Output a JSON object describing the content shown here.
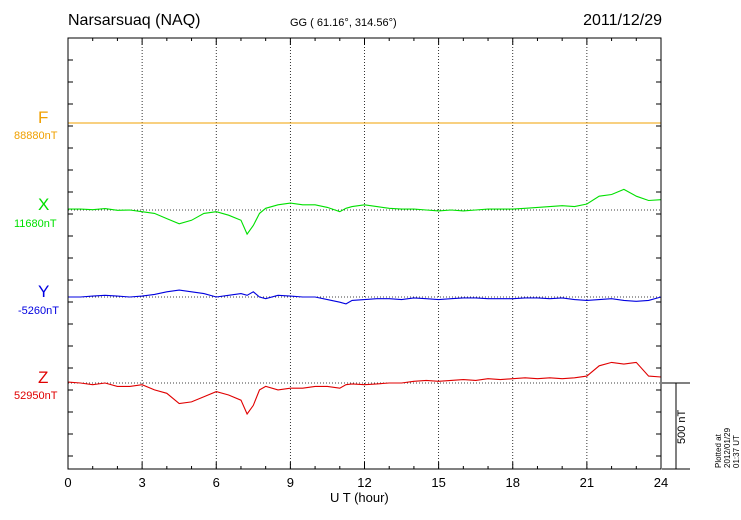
{
  "header": {
    "station": "Narsarsuaq (NAQ)",
    "coords": "GG ( 61.16°, 314.56°)",
    "date": "2011/12/29"
  },
  "components": [
    {
      "letter": "F",
      "base": "88880nT",
      "color": "#f0a000"
    },
    {
      "letter": "X",
      "base": "11680nT",
      "color": "#00e000"
    },
    {
      "letter": "Y",
      "base": "-5260nT",
      "color": "#0000e0"
    },
    {
      "letter": "Z",
      "base": "52950nT",
      "color": "#e00000"
    }
  ],
  "scale_label": "500 nT",
  "plotted_note": "Plotted at 2012/01/29 01:37 UT",
  "chart_data": {
    "type": "line",
    "title": "Narsarsuaq (NAQ)",
    "xlabel": "U T (hour)",
    "x_ticks": [
      0,
      3,
      6,
      9,
      12,
      15,
      18,
      21,
      24
    ],
    "xlim": [
      0,
      24
    ],
    "grid": true,
    "scale_bar_nT": 500,
    "x": [
      0,
      0.5,
      1,
      1.5,
      2,
      2.5,
      3,
      3.5,
      4,
      4.5,
      5,
      5.5,
      6,
      6.5,
      7,
      7.25,
      7.5,
      7.75,
      8,
      8.5,
      9,
      9.5,
      10,
      10.5,
      11,
      11.25,
      11.5,
      12,
      12.5,
      13,
      13.5,
      14,
      14.5,
      15,
      15.5,
      16,
      16.5,
      17,
      17.5,
      18,
      18.5,
      19,
      19.5,
      20,
      20.5,
      21,
      21.5,
      22,
      22.5,
      23,
      23.5,
      24
    ],
    "series": [
      {
        "name": "F",
        "baseline": 88880,
        "values": [
          0,
          0,
          0,
          0,
          0,
          0,
          0,
          0,
          0,
          0,
          0,
          0,
          0,
          0,
          0,
          0,
          0,
          0,
          0,
          0,
          0,
          0,
          0,
          0,
          0,
          0,
          0,
          0,
          0,
          0,
          0,
          0,
          0,
          0,
          0,
          0,
          0,
          0,
          0,
          0,
          0,
          0,
          0,
          0,
          0,
          0,
          0,
          0,
          0,
          0,
          0,
          0
        ]
      },
      {
        "name": "X",
        "baseline": 11680,
        "values": [
          5,
          5,
          2,
          8,
          -2,
          0,
          -10,
          -20,
          -50,
          -80,
          -60,
          -20,
          -10,
          -30,
          -60,
          -140,
          -90,
          -20,
          10,
          30,
          40,
          30,
          30,
          15,
          -10,
          10,
          20,
          30,
          20,
          10,
          5,
          5,
          0,
          -5,
          0,
          -5,
          0,
          5,
          5,
          5,
          10,
          15,
          20,
          25,
          20,
          35,
          80,
          90,
          120,
          80,
          55,
          60
        ]
      },
      {
        "name": "Y",
        "baseline": -5260,
        "values": [
          0,
          0,
          5,
          10,
          5,
          0,
          5,
          15,
          30,
          40,
          30,
          20,
          0,
          10,
          20,
          10,
          30,
          0,
          -10,
          10,
          5,
          0,
          0,
          -15,
          -30,
          -40,
          -20,
          -15,
          -10,
          -10,
          -15,
          -5,
          -10,
          -15,
          -10,
          -5,
          -5,
          -10,
          -10,
          -10,
          -5,
          -5,
          -10,
          -5,
          -15,
          -20,
          -15,
          -10,
          -20,
          -25,
          -20,
          0
        ]
      },
      {
        "name": "Z",
        "baseline": 52950,
        "values": [
          5,
          0,
          -10,
          0,
          -20,
          -20,
          -10,
          -40,
          -60,
          -120,
          -110,
          -80,
          -50,
          -70,
          -100,
          -180,
          -130,
          -40,
          -20,
          -40,
          -30,
          -30,
          -20,
          -20,
          -30,
          -10,
          -5,
          -10,
          -5,
          0,
          0,
          10,
          15,
          10,
          15,
          20,
          15,
          25,
          20,
          25,
          30,
          25,
          30,
          25,
          30,
          40,
          100,
          120,
          110,
          120,
          40,
          35
        ]
      }
    ]
  }
}
